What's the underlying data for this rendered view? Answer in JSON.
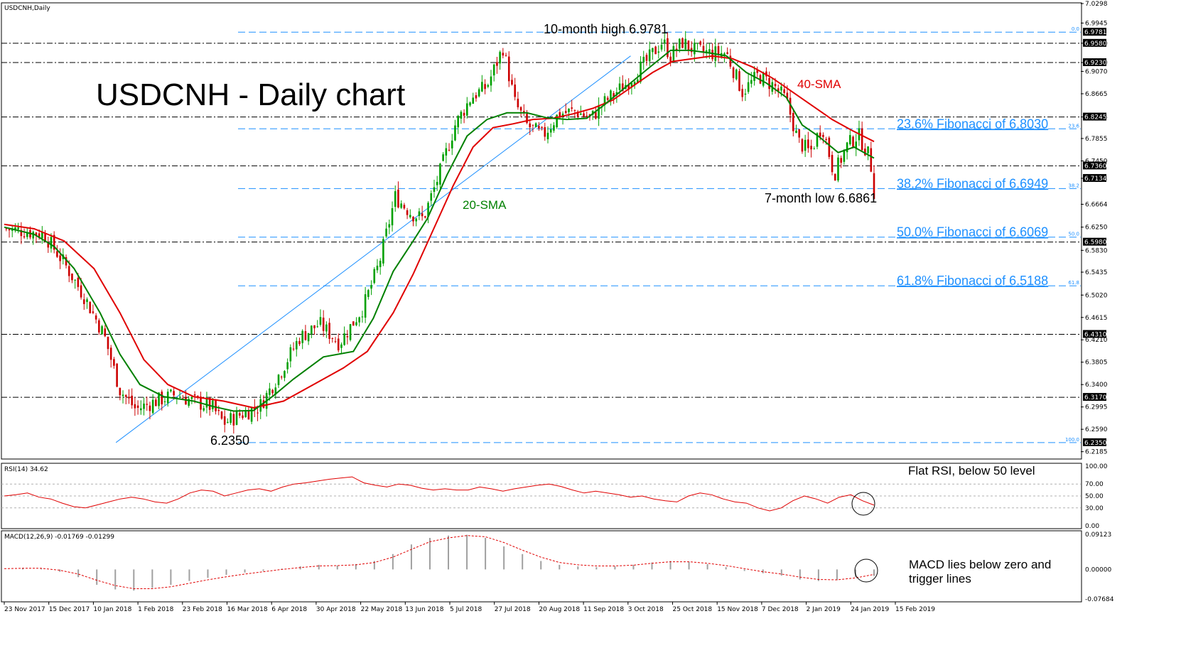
{
  "chart_data": [
    {
      "type": "candlestick",
      "symbol_label": "USDCNH,Daily",
      "title": "USDCNH - Daily chart",
      "ylim": [
        6.2052,
        7.0298
      ],
      "price_ticks": [
        "7.0298",
        "6.9945",
        "6.9580",
        "6.9230",
        "6.9070",
        "6.8665",
        "6.8245",
        "6.7855",
        "6.7450",
        "6.7134",
        "6.6664",
        "6.6250",
        "6.5830",
        "6.5435",
        "6.5020",
        "6.4615",
        "6.4210",
        "6.3805",
        "6.3400",
        "6.2995",
        "6.2590",
        "6.2185"
      ],
      "level_badges": [
        "6.9781",
        "6.9580",
        "6.9230",
        "6.8245",
        "6.7360",
        "6.7134",
        "6.5980",
        "6.4310",
        "6.3170",
        "6.2350"
      ],
      "horizontal_levels": [
        6.958,
        6.923,
        6.8245,
        6.736,
        6.598,
        6.431,
        6.317
      ],
      "fibonacci": [
        {
          "pct": "0.0",
          "value": 6.9781,
          "label": ""
        },
        {
          "pct": "23.6",
          "value": 6.803,
          "label": "23.6% Fibonacci of 6.8030"
        },
        {
          "pct": "38.2",
          "value": 6.6949,
          "label": "38.2% Fibonacci of 6.6949"
        },
        {
          "pct": "50.0",
          "value": 6.6069,
          "label": "50.0% Fibonacci of 6.6069"
        },
        {
          "pct": "61.8",
          "value": 6.5188,
          "label": "61.8% Fibonacci of 6.5188"
        },
        {
          "pct": "100.0",
          "value": 6.235,
          "label": ""
        }
      ],
      "x_labels": [
        "23 Nov 2017",
        "15 Dec 2017",
        "10 Jan 2018",
        "1 Feb 2018",
        "23 Feb 2018",
        "16 Mar 2018",
        "6 Apr 2018",
        "30 Apr 2018",
        "22 May 2018",
        "13 Jun 2018",
        "5 Jul 2018",
        "27 Jul 2018",
        "20 Aug 2018",
        "11 Sep 2018",
        "3 Oct 2018",
        "25 Oct 2018",
        "15 Nov 2018",
        "7 Dec 2018",
        "2 Jan 2019",
        "24 Jan 2019",
        "15 Feb 2019"
      ],
      "close_path": [
        [
          0,
          6.622
        ],
        [
          10,
          6.618
        ],
        [
          20,
          6.612
        ],
        [
          30,
          6.56
        ],
        [
          40,
          6.5
        ],
        [
          50,
          6.43
        ],
        [
          58,
          6.33
        ],
        [
          66,
          6.295
        ],
        [
          76,
          6.31
        ],
        [
          86,
          6.322
        ],
        [
          96,
          6.308
        ],
        [
          104,
          6.3
        ],
        [
          110,
          6.27
        ],
        [
          118,
          6.285
        ],
        [
          128,
          6.3
        ],
        [
          138,
          6.36
        ],
        [
          148,
          6.425
        ],
        [
          158,
          6.45
        ],
        [
          168,
          6.415
        ],
        [
          180,
          6.48
        ],
        [
          188,
          6.56
        ],
        [
          196,
          6.68
        ],
        [
          204,
          6.65
        ],
        [
          210,
          6.64
        ],
        [
          218,
          6.72
        ],
        [
          226,
          6.81
        ],
        [
          234,
          6.86
        ],
        [
          242,
          6.88
        ],
        [
          250,
          6.95
        ],
        [
          256,
          6.85
        ],
        [
          262,
          6.81
        ],
        [
          270,
          6.79
        ],
        [
          278,
          6.83
        ],
        [
          286,
          6.835
        ],
        [
          294,
          6.822
        ],
        [
          302,
          6.855
        ],
        [
          312,
          6.885
        ],
        [
          322,
          6.925
        ],
        [
          330,
          6.962
        ],
        [
          334,
          6.935
        ],
        [
          340,
          6.96
        ],
        [
          346,
          6.945
        ],
        [
          354,
          6.94
        ],
        [
          362,
          6.94
        ],
        [
          370,
          6.87
        ],
        [
          378,
          6.9
        ],
        [
          386,
          6.88
        ],
        [
          392,
          6.855
        ],
        [
          398,
          6.78
        ],
        [
          404,
          6.76
        ],
        [
          410,
          6.81
        ],
        [
          416,
          6.72
        ],
        [
          422,
          6.77
        ],
        [
          428,
          6.793
        ],
        [
          434,
          6.75
        ],
        [
          436,
          6.69
        ]
      ],
      "sma20": [
        [
          0,
          6.625
        ],
        [
          15,
          6.612
        ],
        [
          25,
          6.59
        ],
        [
          35,
          6.55
        ],
        [
          48,
          6.47
        ],
        [
          58,
          6.395
        ],
        [
          68,
          6.34
        ],
        [
          80,
          6.318
        ],
        [
          95,
          6.31
        ],
        [
          105,
          6.3
        ],
        [
          115,
          6.292
        ],
        [
          125,
          6.293
        ],
        [
          135,
          6.32
        ],
        [
          145,
          6.35
        ],
        [
          160,
          6.39
        ],
        [
          175,
          6.4
        ],
        [
          185,
          6.46
        ],
        [
          195,
          6.545
        ],
        [
          205,
          6.6
        ],
        [
          212,
          6.64
        ],
        [
          222,
          6.72
        ],
        [
          232,
          6.79
        ],
        [
          242,
          6.82
        ],
        [
          252,
          6.832
        ],
        [
          262,
          6.832
        ],
        [
          272,
          6.823
        ],
        [
          282,
          6.82
        ],
        [
          292,
          6.822
        ],
        [
          302,
          6.85
        ],
        [
          312,
          6.88
        ],
        [
          322,
          6.91
        ],
        [
          334,
          6.945
        ],
        [
          344,
          6.945
        ],
        [
          354,
          6.94
        ],
        [
          362,
          6.935
        ],
        [
          372,
          6.905
        ],
        [
          382,
          6.886
        ],
        [
          392,
          6.86
        ],
        [
          400,
          6.81
        ],
        [
          408,
          6.79
        ],
        [
          418,
          6.76
        ],
        [
          426,
          6.77
        ],
        [
          436,
          6.75
        ]
      ],
      "sma40": [
        [
          0,
          6.63
        ],
        [
          15,
          6.622
        ],
        [
          30,
          6.6
        ],
        [
          45,
          6.55
        ],
        [
          58,
          6.47
        ],
        [
          70,
          6.385
        ],
        [
          82,
          6.34
        ],
        [
          95,
          6.318
        ],
        [
          110,
          6.31
        ],
        [
          125,
          6.298
        ],
        [
          140,
          6.31
        ],
        [
          155,
          6.34
        ],
        [
          170,
          6.37
        ],
        [
          182,
          6.4
        ],
        [
          195,
          6.47
        ],
        [
          205,
          6.54
        ],
        [
          215,
          6.62
        ],
        [
          225,
          6.7
        ],
        [
          235,
          6.77
        ],
        [
          245,
          6.805
        ],
        [
          255,
          6.812
        ],
        [
          265,
          6.82
        ],
        [
          275,
          6.822
        ],
        [
          285,
          6.83
        ],
        [
          295,
          6.84
        ],
        [
          305,
          6.855
        ],
        [
          315,
          6.88
        ],
        [
          325,
          6.905
        ],
        [
          335,
          6.925
        ],
        [
          345,
          6.93
        ],
        [
          355,
          6.935
        ],
        [
          365,
          6.93
        ],
        [
          375,
          6.915
        ],
        [
          385,
          6.895
        ],
        [
          395,
          6.87
        ],
        [
          405,
          6.845
        ],
        [
          415,
          6.82
        ],
        [
          425,
          6.8
        ],
        [
          436,
          6.78
        ]
      ],
      "trendline": [
        [
          56,
          6.235
        ],
        [
          314,
          6.935
        ]
      ],
      "annotations": [
        "10-month high 6.9781",
        "7-month low 6.6861",
        "6.2350",
        "20-SMA",
        "40-SMA"
      ],
      "colors": {
        "candle_up": "#00a000",
        "candle_down": "#cc0000",
        "sma20": "#008000",
        "sma40": "#e00000",
        "fib": "#1e90ff",
        "levels": "#000000",
        "trendline": "#1e90ff"
      }
    },
    {
      "type": "line",
      "label": "RSI(14) 34.62",
      "ylim": [
        0,
        100
      ],
      "ticks": [
        "100.00",
        "70.00",
        "50.00",
        "30.00",
        "0.00"
      ],
      "levels": [
        70,
        50,
        30
      ],
      "values": [
        50,
        52,
        55,
        48,
        45,
        38,
        32,
        30,
        35,
        40,
        45,
        48,
        45,
        40,
        38,
        45,
        55,
        60,
        58,
        50,
        55,
        60,
        62,
        58,
        65,
        70,
        72,
        75,
        78,
        80,
        82,
        72,
        68,
        65,
        70,
        68,
        63,
        60,
        62,
        60,
        60,
        65,
        62,
        58,
        62,
        65,
        68,
        70,
        66,
        60,
        55,
        58,
        55,
        52,
        48,
        50,
        45,
        42,
        40,
        50,
        55,
        52,
        45,
        40,
        38,
        30,
        25,
        30,
        42,
        50,
        45,
        38,
        48,
        52,
        42,
        34.62
      ],
      "annotation": "Flat RSI, below 50 level",
      "color": "#e00000"
    },
    {
      "type": "bar",
      "label": "MACD(12,26,9) -0.01769 -0.01299",
      "ylim": [
        -0.07684,
        0.09123
      ],
      "ticks": [
        "0.09123",
        "0.00000",
        "-0.07684"
      ],
      "macd": [
        0.0,
        0.004,
        0.002,
        -0.006,
        -0.02,
        -0.04,
        -0.052,
        -0.055,
        -0.048,
        -0.04,
        -0.03,
        -0.022,
        -0.014,
        -0.008,
        -0.004,
        0.002,
        0.008,
        0.012,
        0.01,
        0.014,
        0.022,
        0.04,
        0.065,
        0.082,
        0.088,
        0.09,
        0.082,
        0.06,
        0.04,
        0.022,
        0.012,
        0.008,
        0.006,
        0.008,
        0.012,
        0.018,
        0.022,
        0.02,
        0.014,
        0.006,
        -0.004,
        -0.01,
        -0.016,
        -0.026,
        -0.03,
        -0.028,
        -0.02,
        -0.017
      ],
      "signal": [
        0.002,
        0.003,
        0.003,
        -0.002,
        -0.012,
        -0.028,
        -0.042,
        -0.05,
        -0.05,
        -0.045,
        -0.036,
        -0.027,
        -0.019,
        -0.012,
        -0.006,
        0.0,
        0.005,
        0.009,
        0.01,
        0.012,
        0.018,
        0.032,
        0.052,
        0.072,
        0.082,
        0.088,
        0.085,
        0.07,
        0.05,
        0.032,
        0.018,
        0.012,
        0.009,
        0.009,
        0.011,
        0.016,
        0.02,
        0.02,
        0.016,
        0.01,
        0.002,
        -0.006,
        -0.012,
        -0.02,
        -0.026,
        -0.027,
        -0.022,
        -0.013
      ],
      "annotation_line1": "MACD lies below zero and",
      "annotation_line2": "trigger lines",
      "colors": {
        "hist": "#a0a0a0",
        "signal": "#e00000"
      }
    }
  ]
}
